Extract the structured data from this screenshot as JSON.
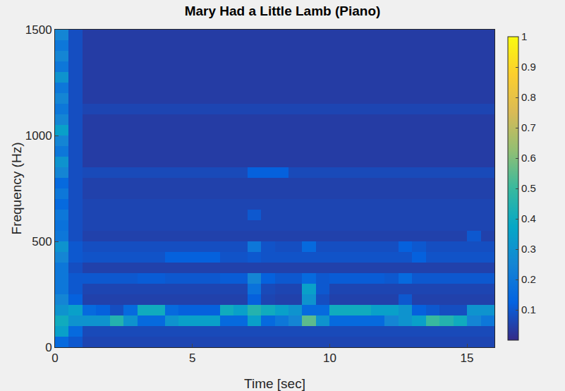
{
  "chart_data": {
    "type": "heatmap",
    "title": "Mary Had a Little Lamb (Piano)",
    "x_label": "Time [sec]",
    "y_label": "Frequency (Hz)",
    "xlim": [
      0,
      16
    ],
    "xticks": [
      0,
      5,
      10,
      15
    ],
    "ylim": [
      0,
      1500
    ],
    "yticks": [
      0,
      500,
      1000,
      1500
    ],
    "colorbar_range": [
      0,
      1
    ],
    "colorbar_ticks": [
      0.1,
      0.2,
      0.3,
      0.4,
      0.5,
      0.6,
      0.7,
      0.8,
      0.9,
      1
    ],
    "x": [
      0.25,
      0.75,
      1.25,
      1.75,
      2.25,
      2.75,
      3.25,
      3.75,
      4.25,
      4.75,
      5.25,
      5.75,
      6.25,
      6.75,
      7.25,
      7.75,
      8.25,
      8.75,
      9.25,
      9.75,
      10.25,
      10.75,
      11.25,
      11.75,
      12.25,
      12.75,
      13.25,
      13.75,
      14.25,
      14.75,
      15.25,
      15.75
    ],
    "y": [
      25,
      75,
      125,
      175,
      225,
      275,
      325,
      375,
      425,
      475,
      525,
      575,
      625,
      675,
      725,
      775,
      825,
      875,
      925,
      975,
      1025,
      1075,
      1125,
      1175,
      1225,
      1275,
      1325,
      1375,
      1425,
      1475
    ],
    "z": [
      [
        0.15,
        0.1,
        0.06,
        0.06,
        0.06,
        0.06,
        0.06,
        0.06,
        0.06,
        0.06,
        0.06,
        0.06,
        0.06,
        0.06,
        0.06,
        0.06,
        0.06,
        0.06,
        0.06,
        0.06,
        0.06,
        0.06,
        0.06,
        0.06,
        0.06,
        0.06,
        0.06,
        0.06,
        0.06,
        0.06,
        0.06,
        0.06
      ],
      [
        0.35,
        0.15,
        0.07,
        0.07,
        0.07,
        0.07,
        0.07,
        0.07,
        0.07,
        0.07,
        0.07,
        0.07,
        0.07,
        0.07,
        0.07,
        0.07,
        0.07,
        0.07,
        0.07,
        0.07,
        0.07,
        0.07,
        0.07,
        0.07,
        0.07,
        0.07,
        0.07,
        0.07,
        0.07,
        0.07,
        0.07,
        0.07
      ],
      [
        0.4,
        0.3,
        0.3,
        0.3,
        0.45,
        0.3,
        0.15,
        0.15,
        0.3,
        0.35,
        0.35,
        0.35,
        0.15,
        0.15,
        0.35,
        0.15,
        0.2,
        0.25,
        0.55,
        0.3,
        0.15,
        0.15,
        0.15,
        0.15,
        0.25,
        0.3,
        0.35,
        0.5,
        0.45,
        0.4,
        0.25,
        0.2
      ],
      [
        0.3,
        0.35,
        0.15,
        0.12,
        0.08,
        0.15,
        0.4,
        0.4,
        0.15,
        0.12,
        0.12,
        0.12,
        0.4,
        0.35,
        0.45,
        0.4,
        0.35,
        0.3,
        0.15,
        0.15,
        0.4,
        0.4,
        0.4,
        0.35,
        0.35,
        0.3,
        0.12,
        0.1,
        0.08,
        0.08,
        0.3,
        0.3
      ],
      [
        0.25,
        0.12,
        0.05,
        0.05,
        0.05,
        0.05,
        0.05,
        0.05,
        0.05,
        0.05,
        0.05,
        0.05,
        0.05,
        0.05,
        0.12,
        0.06,
        0.05,
        0.05,
        0.3,
        0.08,
        0.05,
        0.05,
        0.05,
        0.05,
        0.05,
        0.1,
        0.05,
        0.05,
        0.05,
        0.05,
        0.05,
        0.05
      ],
      [
        0.2,
        0.1,
        0.06,
        0.06,
        0.06,
        0.06,
        0.06,
        0.06,
        0.06,
        0.06,
        0.06,
        0.06,
        0.06,
        0.06,
        0.18,
        0.07,
        0.06,
        0.06,
        0.35,
        0.1,
        0.06,
        0.06,
        0.06,
        0.06,
        0.06,
        0.06,
        0.06,
        0.06,
        0.06,
        0.06,
        0.06,
        0.06
      ],
      [
        0.2,
        0.1,
        0.1,
        0.1,
        0.1,
        0.1,
        0.11,
        0.11,
        0.1,
        0.1,
        0.1,
        0.1,
        0.11,
        0.11,
        0.25,
        0.12,
        0.1,
        0.1,
        0.15,
        0.1,
        0.11,
        0.11,
        0.11,
        0.11,
        0.1,
        0.15,
        0.1,
        0.1,
        0.1,
        0.1,
        0.1,
        0.1
      ],
      [
        0.2,
        0.08,
        0.05,
        0.05,
        0.05,
        0.05,
        0.05,
        0.05,
        0.05,
        0.05,
        0.05,
        0.05,
        0.05,
        0.05,
        0.05,
        0.05,
        0.05,
        0.05,
        0.05,
        0.05,
        0.05,
        0.05,
        0.05,
        0.05,
        0.05,
        0.05,
        0.05,
        0.05,
        0.05,
        0.05,
        0.05,
        0.05
      ],
      [
        0.25,
        0.1,
        0.09,
        0.09,
        0.09,
        0.09,
        0.09,
        0.09,
        0.12,
        0.12,
        0.12,
        0.12,
        0.09,
        0.09,
        0.1,
        0.09,
        0.09,
        0.09,
        0.09,
        0.09,
        0.09,
        0.09,
        0.09,
        0.09,
        0.09,
        0.09,
        0.12,
        0.09,
        0.09,
        0.09,
        0.09,
        0.09
      ],
      [
        0.3,
        0.1,
        0.08,
        0.08,
        0.08,
        0.08,
        0.08,
        0.08,
        0.08,
        0.08,
        0.08,
        0.08,
        0.08,
        0.08,
        0.2,
        0.09,
        0.08,
        0.08,
        0.15,
        0.08,
        0.08,
        0.08,
        0.08,
        0.08,
        0.08,
        0.12,
        0.1,
        0.08,
        0.08,
        0.08,
        0.08,
        0.08
      ],
      [
        0.2,
        0.08,
        0.05,
        0.05,
        0.05,
        0.05,
        0.05,
        0.05,
        0.05,
        0.05,
        0.05,
        0.05,
        0.05,
        0.05,
        0.05,
        0.05,
        0.05,
        0.05,
        0.05,
        0.05,
        0.05,
        0.05,
        0.05,
        0.05,
        0.05,
        0.05,
        0.05,
        0.05,
        0.05,
        0.05,
        0.1,
        0.05
      ],
      [
        0.18,
        0.08,
        0.06,
        0.06,
        0.06,
        0.06,
        0.06,
        0.06,
        0.06,
        0.06,
        0.06,
        0.06,
        0.06,
        0.06,
        0.06,
        0.06,
        0.06,
        0.06,
        0.06,
        0.06,
        0.06,
        0.06,
        0.06,
        0.06,
        0.06,
        0.06,
        0.06,
        0.06,
        0.06,
        0.06,
        0.06,
        0.06
      ],
      [
        0.2,
        0.08,
        0.06,
        0.06,
        0.06,
        0.06,
        0.06,
        0.06,
        0.06,
        0.06,
        0.06,
        0.06,
        0.06,
        0.06,
        0.1,
        0.06,
        0.06,
        0.06,
        0.06,
        0.06,
        0.06,
        0.06,
        0.06,
        0.06,
        0.06,
        0.06,
        0.06,
        0.06,
        0.06,
        0.06,
        0.06,
        0.06
      ],
      [
        0.15,
        0.08,
        0.06,
        0.06,
        0.06,
        0.06,
        0.06,
        0.06,
        0.06,
        0.06,
        0.06,
        0.06,
        0.06,
        0.06,
        0.06,
        0.06,
        0.06,
        0.06,
        0.06,
        0.06,
        0.06,
        0.06,
        0.06,
        0.06,
        0.06,
        0.06,
        0.06,
        0.06,
        0.06,
        0.06,
        0.06,
        0.06
      ],
      [
        0.2,
        0.08,
        0.05,
        0.05,
        0.05,
        0.05,
        0.05,
        0.05,
        0.05,
        0.05,
        0.05,
        0.05,
        0.05,
        0.05,
        0.05,
        0.05,
        0.05,
        0.05,
        0.05,
        0.05,
        0.05,
        0.05,
        0.05,
        0.05,
        0.05,
        0.05,
        0.05,
        0.05,
        0.05,
        0.05,
        0.05,
        0.05
      ],
      [
        0.15,
        0.08,
        0.05,
        0.05,
        0.05,
        0.05,
        0.05,
        0.05,
        0.05,
        0.05,
        0.05,
        0.05,
        0.05,
        0.05,
        0.05,
        0.05,
        0.05,
        0.05,
        0.05,
        0.05,
        0.05,
        0.05,
        0.05,
        0.05,
        0.05,
        0.05,
        0.05,
        0.05,
        0.05,
        0.05,
        0.05,
        0.05
      ],
      [
        0.25,
        0.08,
        0.07,
        0.07,
        0.07,
        0.07,
        0.07,
        0.07,
        0.07,
        0.07,
        0.07,
        0.07,
        0.07,
        0.07,
        0.12,
        0.12,
        0.12,
        0.07,
        0.07,
        0.07,
        0.07,
        0.07,
        0.07,
        0.07,
        0.07,
        0.07,
        0.07,
        0.07,
        0.07,
        0.07,
        0.07,
        0.07
      ],
      [
        0.3,
        0.08,
        0.04,
        0.04,
        0.04,
        0.04,
        0.04,
        0.04,
        0.04,
        0.04,
        0.04,
        0.04,
        0.04,
        0.04,
        0.04,
        0.04,
        0.04,
        0.04,
        0.04,
        0.04,
        0.04,
        0.04,
        0.04,
        0.04,
        0.04,
        0.04,
        0.04,
        0.04,
        0.04,
        0.04,
        0.04,
        0.04
      ],
      [
        0.2,
        0.08,
        0.04,
        0.04,
        0.04,
        0.04,
        0.04,
        0.04,
        0.04,
        0.04,
        0.04,
        0.04,
        0.04,
        0.04,
        0.04,
        0.04,
        0.04,
        0.04,
        0.04,
        0.04,
        0.04,
        0.04,
        0.04,
        0.04,
        0.04,
        0.04,
        0.04,
        0.04,
        0.04,
        0.04,
        0.04,
        0.04
      ],
      [
        0.25,
        0.08,
        0.04,
        0.04,
        0.04,
        0.04,
        0.04,
        0.04,
        0.04,
        0.04,
        0.04,
        0.04,
        0.04,
        0.04,
        0.04,
        0.04,
        0.04,
        0.04,
        0.04,
        0.04,
        0.04,
        0.04,
        0.04,
        0.04,
        0.04,
        0.04,
        0.04,
        0.04,
        0.04,
        0.04,
        0.04,
        0.04
      ],
      [
        0.35,
        0.08,
        0.04,
        0.04,
        0.04,
        0.04,
        0.04,
        0.04,
        0.04,
        0.04,
        0.04,
        0.04,
        0.04,
        0.04,
        0.04,
        0.04,
        0.04,
        0.04,
        0.04,
        0.04,
        0.04,
        0.04,
        0.04,
        0.04,
        0.04,
        0.04,
        0.04,
        0.04,
        0.04,
        0.04,
        0.04,
        0.04
      ],
      [
        0.25,
        0.08,
        0.04,
        0.04,
        0.04,
        0.04,
        0.04,
        0.04,
        0.04,
        0.04,
        0.04,
        0.04,
        0.04,
        0.04,
        0.04,
        0.04,
        0.04,
        0.04,
        0.04,
        0.04,
        0.04,
        0.04,
        0.04,
        0.04,
        0.04,
        0.04,
        0.04,
        0.04,
        0.04,
        0.04,
        0.04,
        0.04
      ],
      [
        0.2,
        0.08,
        0.06,
        0.06,
        0.06,
        0.06,
        0.06,
        0.06,
        0.06,
        0.06,
        0.06,
        0.06,
        0.06,
        0.06,
        0.06,
        0.06,
        0.06,
        0.06,
        0.06,
        0.06,
        0.06,
        0.06,
        0.06,
        0.06,
        0.06,
        0.06,
        0.06,
        0.06,
        0.06,
        0.06,
        0.06,
        0.06
      ],
      [
        0.25,
        0.08,
        0.04,
        0.04,
        0.04,
        0.04,
        0.04,
        0.04,
        0.04,
        0.04,
        0.04,
        0.04,
        0.04,
        0.04,
        0.04,
        0.04,
        0.04,
        0.04,
        0.04,
        0.04,
        0.04,
        0.04,
        0.04,
        0.04,
        0.04,
        0.04,
        0.04,
        0.04,
        0.04,
        0.04,
        0.04,
        0.04
      ],
      [
        0.2,
        0.08,
        0.04,
        0.04,
        0.04,
        0.04,
        0.04,
        0.04,
        0.04,
        0.04,
        0.04,
        0.04,
        0.04,
        0.04,
        0.04,
        0.04,
        0.04,
        0.04,
        0.04,
        0.04,
        0.04,
        0.04,
        0.04,
        0.04,
        0.04,
        0.04,
        0.04,
        0.04,
        0.04,
        0.04,
        0.04,
        0.04
      ],
      [
        0.3,
        0.08,
        0.04,
        0.04,
        0.04,
        0.04,
        0.04,
        0.04,
        0.04,
        0.04,
        0.04,
        0.04,
        0.04,
        0.04,
        0.04,
        0.04,
        0.04,
        0.04,
        0.04,
        0.04,
        0.04,
        0.04,
        0.04,
        0.04,
        0.04,
        0.04,
        0.04,
        0.04,
        0.04,
        0.04,
        0.04,
        0.04
      ],
      [
        0.2,
        0.08,
        0.04,
        0.04,
        0.04,
        0.04,
        0.04,
        0.04,
        0.04,
        0.04,
        0.04,
        0.04,
        0.04,
        0.04,
        0.04,
        0.04,
        0.04,
        0.04,
        0.04,
        0.04,
        0.04,
        0.04,
        0.04,
        0.04,
        0.04,
        0.04,
        0.04,
        0.04,
        0.04,
        0.04,
        0.04,
        0.04
      ],
      [
        0.25,
        0.08,
        0.04,
        0.04,
        0.04,
        0.04,
        0.04,
        0.04,
        0.04,
        0.04,
        0.04,
        0.04,
        0.04,
        0.04,
        0.04,
        0.04,
        0.04,
        0.04,
        0.04,
        0.04,
        0.04,
        0.04,
        0.04,
        0.04,
        0.04,
        0.04,
        0.04,
        0.04,
        0.04,
        0.04,
        0.04,
        0.04
      ],
      [
        0.2,
        0.08,
        0.04,
        0.04,
        0.04,
        0.04,
        0.04,
        0.04,
        0.04,
        0.04,
        0.04,
        0.04,
        0.04,
        0.04,
        0.04,
        0.04,
        0.04,
        0.04,
        0.04,
        0.04,
        0.04,
        0.04,
        0.04,
        0.04,
        0.04,
        0.04,
        0.04,
        0.04,
        0.04,
        0.04,
        0.04,
        0.04
      ],
      [
        0.25,
        0.08,
        0.04,
        0.04,
        0.04,
        0.04,
        0.04,
        0.04,
        0.04,
        0.04,
        0.04,
        0.04,
        0.04,
        0.04,
        0.04,
        0.04,
        0.04,
        0.04,
        0.04,
        0.04,
        0.04,
        0.04,
        0.04,
        0.04,
        0.04,
        0.04,
        0.04,
        0.04,
        0.04,
        0.04,
        0.04,
        0.04
      ]
    ]
  }
}
